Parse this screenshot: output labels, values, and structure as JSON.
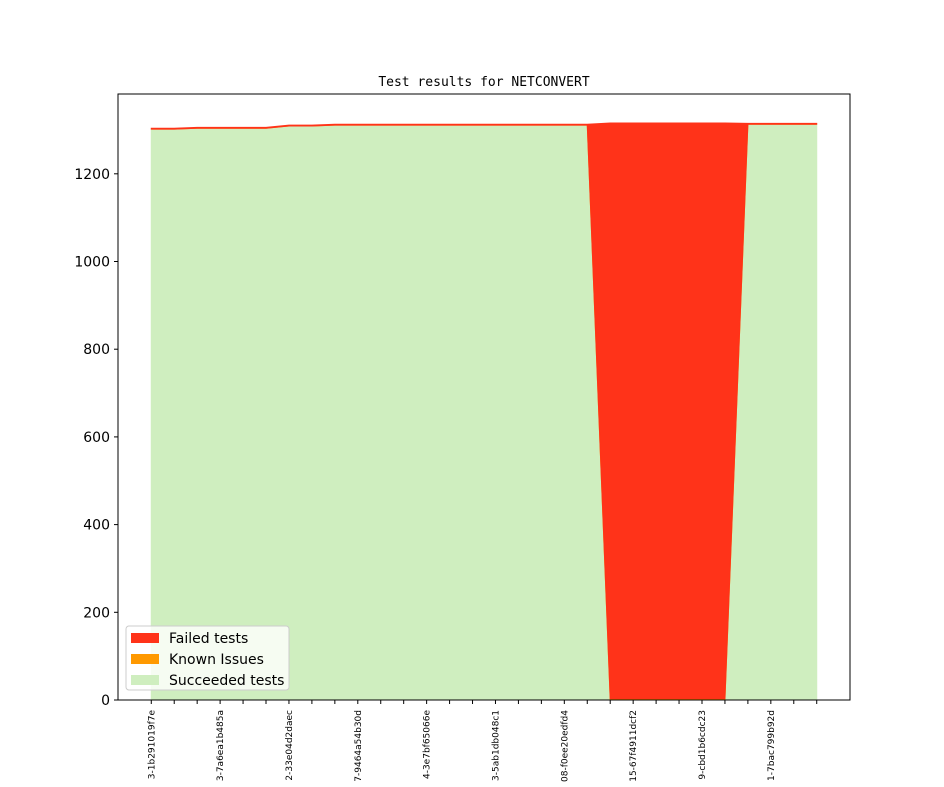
{
  "chart_data": {
    "type": "stackplot",
    "title": "Test results for NETCONVERT",
    "categories": [
      "3-1b291019f7e",
      null,
      null,
      "3-7a6ea1b485a",
      null,
      null,
      "2-33e04d2daec",
      null,
      null,
      "7-9464a54b30d",
      null,
      null,
      "4-3e7bf65066e",
      null,
      null,
      "3-5ab1db048c1",
      null,
      null,
      "08-f0ee20edfd4",
      null,
      null,
      "15-67f4911dcf2",
      null,
      null,
      "9-cbd1b6cdc23",
      null,
      null,
      "1-7bac799b92d",
      null,
      null
    ],
    "series": [
      {
        "name": "Succeeded tests",
        "color": "#cfeebf",
        "values": [
          1302,
          1302,
          1304,
          1304,
          1304,
          1304,
          1309,
          1309,
          1311,
          1311,
          1311,
          1311,
          1311,
          1311,
          1311,
          1311,
          1311,
          1311,
          1311,
          1311,
          0,
          0,
          0,
          0,
          0,
          0,
          1313,
          1313,
          1313,
          1313
        ]
      },
      {
        "name": "Known Issues",
        "color": "#ff9900",
        "values": [
          0,
          0,
          0,
          0,
          0,
          0,
          0,
          0,
          0,
          0,
          0,
          0,
          0,
          0,
          0,
          0,
          0,
          0,
          0,
          0,
          3,
          3,
          3,
          3,
          3,
          3,
          0,
          0,
          0,
          0
        ]
      },
      {
        "name": "Failed tests",
        "color": "#ff3319",
        "values": [
          2,
          2,
          2,
          2,
          2,
          2,
          2,
          2,
          2,
          2,
          2,
          2,
          2,
          2,
          2,
          2,
          2,
          2,
          2,
          2,
          1313,
          1313,
          1313,
          1313,
          1313,
          1313,
          2,
          2,
          2,
          2
        ]
      }
    ],
    "ylim": [
      0,
      1382
    ],
    "yticks": [
      0,
      200,
      400,
      600,
      800,
      1000,
      1200
    ],
    "legend": "lower left"
  }
}
